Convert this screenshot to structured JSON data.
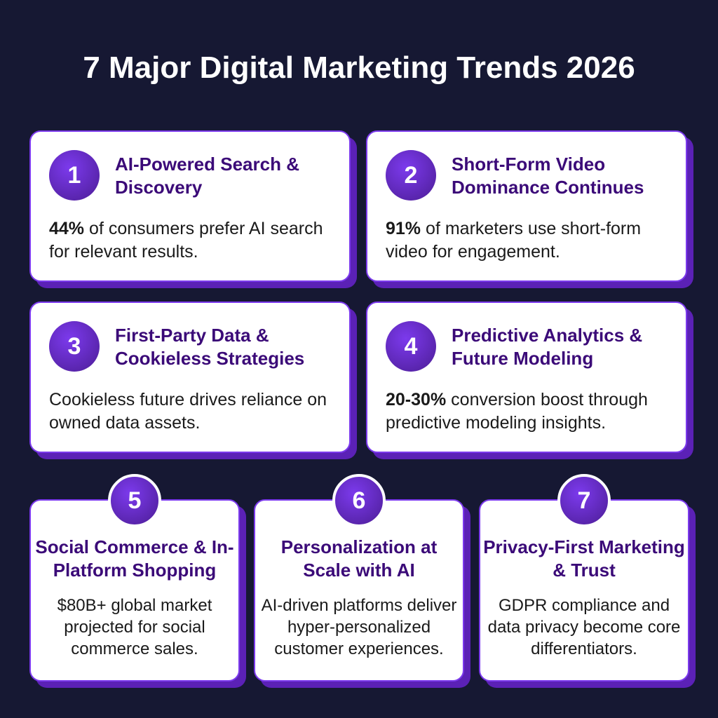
{
  "title": "7 Major Digital Marketing Trends 2026",
  "cards": [
    {
      "number": 1,
      "title": "AI-Powered Search & Discovery",
      "highlight": "44%",
      "body": "of consumers prefer AI search for relevant results."
    },
    {
      "number": 2,
      "title": "Short-Form Video Dominance Continues",
      "highlight": "91%",
      "body": "of marketers use short-form video for engagement."
    },
    {
      "number": 3,
      "title": "First-Party Data & Cookieless Strategies",
      "body": "Cookieless future drives reliance on owned data assets."
    },
    {
      "number": 4,
      "title": "Predictive Analytics & Future Modeling",
      "highlight": "20-30%",
      "body": "conversion boost through predictive modeling insights."
    },
    {
      "number": 5,
      "title": "Social Commerce & In-Platform Shopping",
      "body": "$80B+ global market projected for social commerce sales."
    },
    {
      "number": 6,
      "title": "Personalization at Scale with AI",
      "body": "AI-driven platforms deliver hyper-personalized customer experiences."
    },
    {
      "number": 7,
      "title": "Privacy-First Marketing & Trust",
      "body": "GDPR compliance and data privacy become core differentiators."
    }
  ]
}
